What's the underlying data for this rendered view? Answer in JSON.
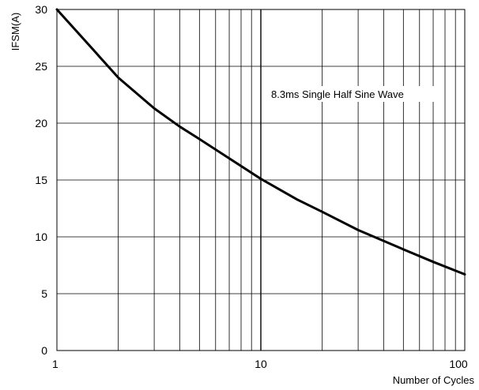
{
  "chart_data": {
    "type": "line",
    "title": "",
    "xlabel": "Number of Cycles",
    "ylabel": "IFSM(A)",
    "x_scale": "log",
    "xlim": [
      1,
      100
    ],
    "ylim": [
      0,
      30
    ],
    "x_ticks": [
      1,
      10,
      100
    ],
    "x_tick_labels": [
      "1",
      "10",
      "100"
    ],
    "y_ticks": [
      0,
      5,
      10,
      15,
      20,
      25,
      30
    ],
    "y_tick_labels": [
      "0",
      "5",
      "10",
      "15",
      "20",
      "25",
      "30"
    ],
    "grid": true,
    "legend": "none",
    "annotation": "8.3ms Single Half Sine Wave",
    "series": [
      {
        "x": [
          1,
          1.5,
          2,
          3,
          4,
          5,
          7,
          10,
          15,
          20,
          30,
          50,
          70,
          100
        ],
        "y": [
          30,
          26.5,
          24,
          21.3,
          19.7,
          18.6,
          16.9,
          15.1,
          13.3,
          12.2,
          10.6,
          8.9,
          7.8,
          6.7
        ]
      }
    ]
  }
}
